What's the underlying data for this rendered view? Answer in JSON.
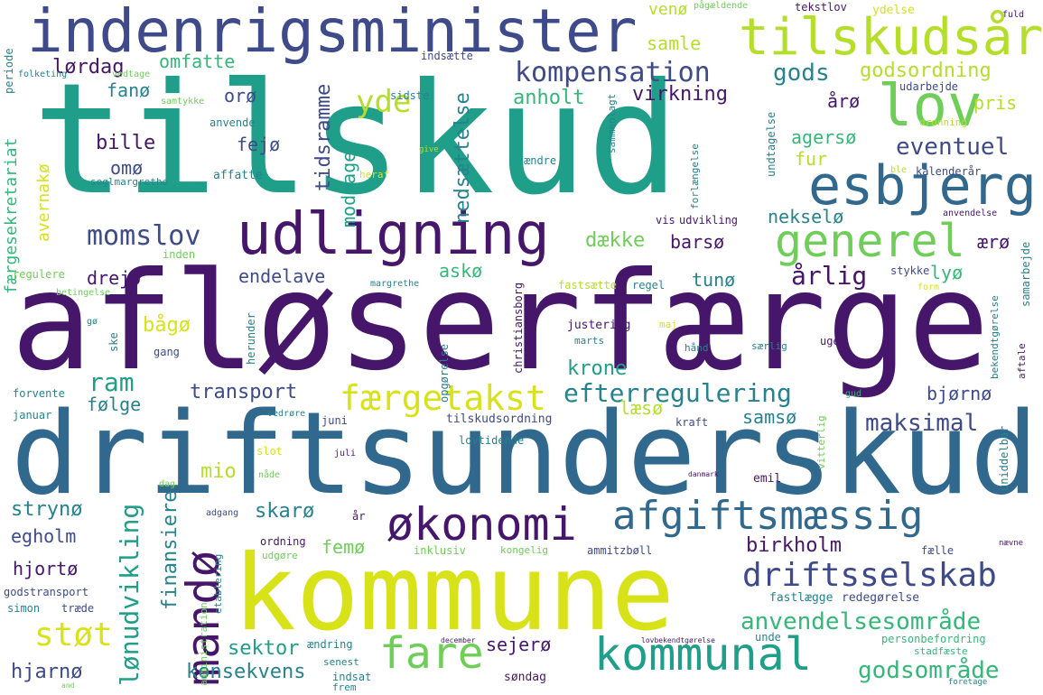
{
  "palette": {
    "dark_purple": "#46166b",
    "indigo": "#3e4a89",
    "blue": "#31688e",
    "teal": "#26828e",
    "green": "#1f9e89",
    "emerald": "#35b779",
    "lime": "#6ece58",
    "yellow_green": "#b5de2b",
    "yellow": "#d8e219",
    "light": "#c8e070"
  },
  "words": [
    "tilskud",
    "afløserfærge",
    "driftsunderskud",
    "kommune",
    "indenrigsminister",
    "udligning",
    "esbjerg",
    "tilskudsår",
    "lov",
    "generel",
    "økonomi",
    "afgiftsmæssig",
    "kommunal",
    "fare",
    "driftsselskab",
    "mandø",
    "færgetakst",
    "anvendelsesområde",
    "momslov",
    "støt",
    "kompensation",
    "efterregulering",
    "eventuel",
    "godsområde",
    "lønudvikling",
    "nedsættelse",
    "tidsramme",
    "yde",
    "maksimal",
    "gods",
    "godsordning",
    "årlig",
    "dække",
    "transport",
    "virkning",
    "konsekvens",
    "sektor",
    "birkholm",
    "finansiere",
    "hjarnø",
    "ram",
    "endelave",
    "anholt",
    "krone",
    "samsø",
    "lørdag",
    "samle",
    "omfatte",
    "fanø",
    "orø",
    "bille",
    "fejø",
    "omø",
    "agersø",
    "fur",
    "nekselø",
    "barsø",
    "drejø",
    "askø",
    "tunø",
    "lyø",
    "ærø",
    "årø",
    "pris",
    "bågø",
    "mio",
    "følge",
    "bjørnø",
    "læsø",
    "sejerø",
    "strynø",
    "skarø",
    "egholm",
    "femø",
    "hjortø",
    "avernakø",
    "færgesekretariat",
    "modtage",
    "venø",
    "ydelse",
    "tekstlov",
    "pågældende",
    "indsætte",
    "fuld",
    "periode",
    "folketing",
    "vedtage",
    "samtykke",
    "sidste",
    "anvende",
    "affatte",
    "seglmargrethe",
    "udarbejde",
    "undtagelse",
    "forlængelse",
    "sammenlagt",
    "ændre",
    "heraf",
    "give",
    "dronning",
    "kalenderår",
    "ble",
    "anvendelse",
    "udvikling",
    "vis",
    "regulere",
    "inden",
    "regel",
    "fastsætte",
    "christiansborg",
    "stykke",
    "samarbejde",
    "betingelse",
    "margrethe",
    "form",
    "gø",
    "ske",
    "gang",
    "herunder",
    "opgørelse",
    "justering",
    "marts",
    "maj",
    "hånd",
    "særlig",
    "uge",
    "bekendtgørelse",
    "aftale",
    "forvente",
    "januar",
    "vedrøre",
    "juni",
    "tilskudsordning",
    "lovtidende",
    "kraft",
    "gud",
    "vitterlig",
    "uniddelbar",
    "slot",
    "nåde",
    "juli",
    "emil",
    "danmark",
    "dag",
    "adgang",
    "år",
    "ordning",
    "udgøre",
    "inklusiv",
    "kongelig",
    "ammitzbøll",
    "fælle",
    "nævne",
    "fastlægge",
    "redegørelse",
    "godstransport",
    "simon",
    "træde",
    "administration",
    "etablering",
    "ændring",
    "december",
    "lovbekendtgørelse",
    "unde",
    "personbefordring",
    "stadfæste",
    "senest",
    "indsat",
    "frem",
    "søndag",
    "and",
    "foretage"
  ]
}
